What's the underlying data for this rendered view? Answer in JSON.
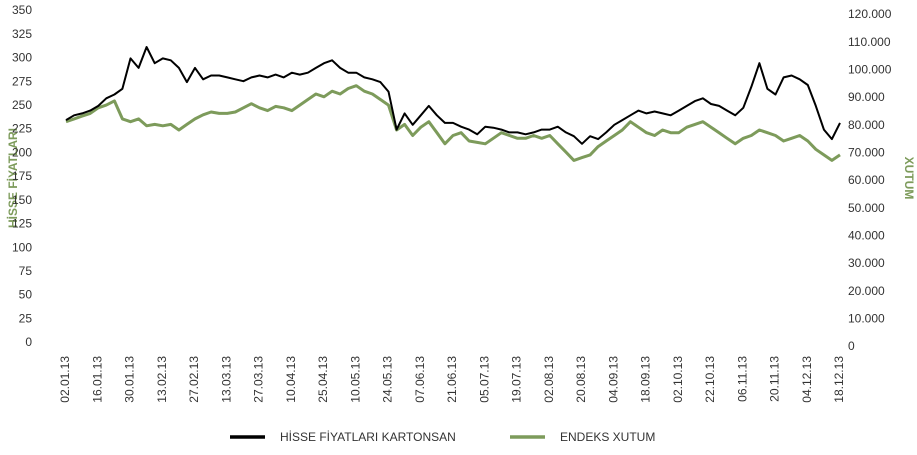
{
  "chart_data": {
    "type": "line",
    "y_label": "HİSSE FİYATLARI",
    "y2_label": "XUTUM",
    "categories": [
      "02.01.13",
      null,
      null,
      null,
      "16.01.13",
      null,
      null,
      null,
      "30.01.13",
      null,
      null,
      null,
      "13.02.13",
      null,
      null,
      null,
      "27.02.13",
      null,
      null,
      null,
      "13.03.13",
      null,
      null,
      null,
      "27.03.13",
      null,
      null,
      null,
      "10.04.13",
      null,
      null,
      null,
      "25.04.13",
      null,
      null,
      null,
      "10.05.13",
      null,
      null,
      null,
      "24.05.13",
      null,
      null,
      null,
      "07.06.13",
      null,
      null,
      null,
      "21.06.13",
      null,
      null,
      null,
      "05.07.13",
      null,
      null,
      null,
      "19.07.13",
      null,
      null,
      null,
      "02.08.13",
      null,
      null,
      null,
      "20.08.13",
      null,
      null,
      null,
      "04.09.13",
      null,
      null,
      null,
      "18.09.13",
      null,
      null,
      null,
      "02.10.13",
      null,
      null,
      null,
      "22.10.13",
      null,
      null,
      null,
      "06.11.13",
      null,
      null,
      null,
      "20.11.13",
      null,
      null,
      null,
      "04.12.13",
      null,
      null,
      null,
      "18.12.13"
    ],
    "series": [
      {
        "name": "HİSSE FİYATLARI KARTONSAN",
        "color": "#000000",
        "axis": "y",
        "values": [
          235,
          240,
          242,
          245,
          250,
          258,
          262,
          268,
          300,
          290,
          312,
          295,
          300,
          298,
          290,
          275,
          290,
          278,
          282,
          282,
          280,
          278,
          276,
          280,
          282,
          280,
          283,
          280,
          285,
          283,
          285,
          290,
          295,
          298,
          290,
          285,
          285,
          280,
          278,
          275,
          265,
          225,
          242,
          230,
          240,
          250,
          240,
          232,
          232,
          228,
          225,
          220,
          228,
          227,
          225,
          222,
          222,
          220,
          222,
          225,
          225,
          228,
          222,
          218,
          210,
          218,
          215,
          222,
          230,
          235,
          240,
          245,
          242,
          244,
          242,
          240,
          245,
          250,
          255,
          258,
          252,
          250,
          245,
          240,
          248,
          270,
          295,
          268,
          262,
          280,
          282,
          278,
          272,
          250,
          225,
          215,
          232
        ]
      },
      {
        "name": "ENDEKS XUTUM",
        "color": "#7d9b5b",
        "axis": "y2",
        "values": [
          80000,
          81000,
          82000,
          83000,
          85000,
          86000,
          87500,
          81000,
          80000,
          81000,
          78500,
          79000,
          78500,
          79000,
          77000,
          79000,
          81000,
          82500,
          83500,
          83000,
          83000,
          83500,
          85000,
          86500,
          85000,
          84000,
          85500,
          85000,
          84000,
          86000,
          88000,
          90000,
          89000,
          91000,
          90000,
          92000,
          93000,
          91000,
          90000,
          88000,
          86000,
          77000,
          79000,
          75000,
          78000,
          80000,
          76000,
          72000,
          75000,
          76000,
          73000,
          72500,
          72000,
          74000,
          76000,
          75000,
          74000,
          74000,
          75000,
          74000,
          75000,
          72000,
          69000,
          66000,
          67000,
          68000,
          71000,
          73000,
          75000,
          77000,
          80000,
          78000,
          76000,
          75000,
          77000,
          76000,
          76000,
          78000,
          79000,
          80000,
          78000,
          76000,
          74000,
          72000,
          74000,
          75000,
          77000,
          76000,
          75000,
          73000,
          74000,
          75000,
          73000,
          70000,
          68000,
          66000,
          68000
        ]
      }
    ],
    "ylim": [
      0,
      350
    ],
    "yticks": [
      0,
      25,
      50,
      75,
      100,
      125,
      150,
      175,
      200,
      225,
      250,
      275,
      300,
      325,
      350
    ],
    "y2lim": [
      0,
      120000
    ],
    "y2ticks": [
      0,
      {
        "value": 10000,
        "label": "10.000"
      },
      {
        "value": 20000,
        "label": "20.000"
      },
      {
        "value": 30000,
        "label": "30.000"
      },
      {
        "value": 40000,
        "label": "40.000"
      },
      {
        "value": 50000,
        "label": "50.000"
      },
      {
        "value": 60000,
        "label": "60.000"
      },
      {
        "value": 70000,
        "label": "70.000"
      },
      {
        "value": 80000,
        "label": "80.000"
      },
      {
        "value": 90000,
        "label": "90.000"
      },
      {
        "value": 100000,
        "label": "100.000"
      },
      {
        "value": 110000,
        "label": "110.000"
      },
      {
        "value": 120000,
        "label": "120.000"
      }
    ],
    "grid": false,
    "legend": "bottom"
  }
}
